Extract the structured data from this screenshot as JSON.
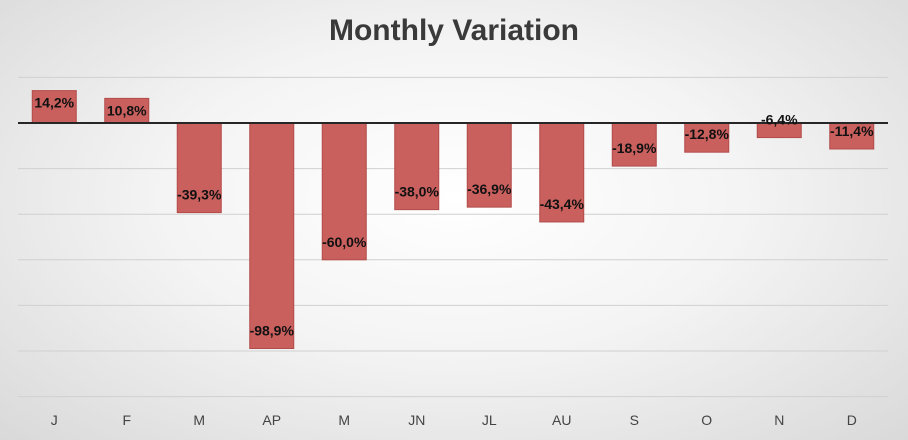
{
  "chart_data": {
    "type": "bar",
    "title": "Monthly Variation",
    "categories": [
      "J",
      "F",
      "M",
      "AP",
      "M",
      "JN",
      "JL",
      "AU",
      "S",
      "O",
      "N",
      "D"
    ],
    "values": [
      14.2,
      10.8,
      -39.3,
      -98.9,
      -60.0,
      -38.0,
      -36.9,
      -43.4,
      -18.9,
      -12.8,
      -6.4,
      -11.4
    ],
    "data_labels": [
      "14,2%",
      "10,8%",
      "-39,3%",
      "-98,9%",
      "-60,0%",
      "-38,0%",
      "-36,9%",
      "-43,4%",
      "-18,9%",
      "-12,8%",
      "-6,4%",
      "-11,4%"
    ],
    "xlabel": "",
    "ylabel": "",
    "ylim": [
      -120,
      20
    ],
    "grid": true,
    "legend": "none",
    "colors": {
      "bar_fill": "#c9605e",
      "bar_stroke": "#b24b49",
      "zero_line": "#262626",
      "grid": "#d0d0d0"
    }
  }
}
